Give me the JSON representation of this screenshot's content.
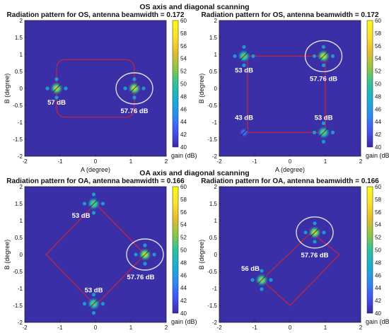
{
  "sections": {
    "top": "OS axis and diagonal scanning",
    "bottom": "OA axis and diagonal scanning"
  },
  "colors": {
    "background": "#3b2fa8",
    "box_line": "#e02424",
    "highlight_ring": "#dddddd",
    "colormap": [
      "#3e26a8",
      "#4354f5",
      "#2d8bf2",
      "#17b0d2",
      "#2dc29a",
      "#8ec742",
      "#e6bd2c",
      "#fbe32c",
      "#f9fb14"
    ]
  },
  "chart_data": [
    {
      "type": "heatmap",
      "title": "Radiation pattern for OS, antenna beamwidth = 0.172",
      "xlabel": "A (degree)",
      "ylabel": "B (degree)",
      "xlim": [
        -2,
        2
      ],
      "ylim": [
        -2,
        2
      ],
      "xticks": [
        "-2",
        "-1",
        "0",
        "1",
        "2"
      ],
      "yticks": [
        "2",
        "1.5",
        "1",
        "0.5",
        "0",
        "-0.5",
        "-1",
        "-1.5",
        "-2"
      ],
      "colorbar": {
        "label": "gain (dB)",
        "range": [
          40,
          60
        ],
        "ticks": [
          "60",
          "58",
          "56",
          "54",
          "52",
          "50",
          "48",
          "46",
          "44",
          "42",
          "40"
        ]
      },
      "scan_path": {
        "shape": "rounded-square",
        "x": [
          -1.1,
          1.1
        ],
        "y": [
          -0.85,
          0.85
        ]
      },
      "beams": [
        {
          "x": -1.1,
          "y": 0.0,
          "peak_db": 57,
          "label": "57 dB",
          "highlighted": false
        },
        {
          "x": 1.1,
          "y": 0.0,
          "peak_db": 57.76,
          "label": "57.76 dB",
          "highlighted": true
        }
      ]
    },
    {
      "type": "heatmap",
      "title": "Radiation pattern for OS, antenna beamwidth = 0.172",
      "xlabel": "A (degree)",
      "ylabel": "B (degree)",
      "xlim": [
        -2,
        2
      ],
      "ylim": [
        -2,
        2
      ],
      "xticks": [
        "-2",
        "-1",
        "0",
        "1",
        "2"
      ],
      "yticks": [
        "2",
        "1.5",
        "1",
        "0.5",
        "0",
        "-0.5",
        "-1",
        "-1.5",
        "-2"
      ],
      "colorbar": {
        "label": "gain (dB)",
        "range": [
          40,
          60
        ],
        "ticks": [
          "60",
          "58",
          "56",
          "54",
          "52",
          "50",
          "48",
          "46",
          "44",
          "42",
          "40"
        ]
      },
      "scan_path": {
        "shape": "square",
        "x": [
          -1.2,
          1.0
        ],
        "y": [
          -1.3,
          0.95
        ]
      },
      "beams": [
        {
          "x": -1.3,
          "y": 0.95,
          "peak_db": 53,
          "label": "53 dB",
          "highlighted": false
        },
        {
          "x": 0.95,
          "y": 0.95,
          "peak_db": 57.76,
          "label": "57.76 dB",
          "highlighted": true
        },
        {
          "x": -1.3,
          "y": -1.3,
          "peak_db": 43,
          "label": "43 dB",
          "highlighted": false
        },
        {
          "x": 0.95,
          "y": -1.3,
          "peak_db": 53,
          "label": "53 dB",
          "highlighted": false
        }
      ]
    },
    {
      "type": "heatmap",
      "title": "Radiation pattern for OA, antenna beamwidth = 0.166",
      "xlabel": "A (degree)",
      "ylabel": "B (degree)",
      "xlim": [
        -2,
        2
      ],
      "ylim": [
        -2,
        2
      ],
      "xticks": [
        "-2",
        "-1",
        "0",
        "1",
        "2"
      ],
      "yticks": [
        "2",
        "1.5",
        "1",
        "0.5",
        "0",
        "-0.5",
        "-1",
        "-1.5",
        "-2"
      ],
      "colorbar": {
        "label": "gain (dB)",
        "range": [
          40,
          60
        ],
        "ticks": [
          "60",
          "58",
          "56",
          "54",
          "52",
          "50",
          "48",
          "46",
          "44",
          "42",
          "40"
        ]
      },
      "scan_path": {
        "shape": "diamond",
        "points": [
          [
            0,
            1.5
          ],
          [
            1.4,
            0
          ],
          [
            0,
            -1.5
          ],
          [
            -1.4,
            0
          ]
        ]
      },
      "beams": [
        {
          "x": -0.05,
          "y": 1.5,
          "peak_db": 53,
          "label": "53 dB",
          "highlighted": false
        },
        {
          "x": 1.4,
          "y": 0.0,
          "peak_db": 57.76,
          "label": "57.76 dB",
          "highlighted": true
        },
        {
          "x": -0.05,
          "y": -1.45,
          "peak_db": 53,
          "label": "53 dB",
          "highlighted": false
        }
      ]
    },
    {
      "type": "heatmap",
      "title": "Radiation pattern for OA, antenna beamwidth = 0.166",
      "xlabel": "A (degree)",
      "ylabel": "B (degree)",
      "xlim": [
        -2,
        2
      ],
      "ylim": [
        -2,
        2
      ],
      "xticks": [
        "-2",
        "-1",
        "0",
        "1",
        "2"
      ],
      "yticks": [
        "2",
        "1.5",
        "1",
        "0.5",
        "0",
        "-0.5",
        "-1",
        "-1.5",
        "-2"
      ],
      "colorbar": {
        "label": "gain (dB)",
        "range": [
          40,
          60
        ],
        "ticks": [
          "60",
          "58",
          "56",
          "54",
          "52",
          "50",
          "48",
          "46",
          "44",
          "42",
          "40"
        ]
      },
      "scan_path": {
        "shape": "diamond",
        "points": [
          [
            0.6,
            0.65
          ],
          [
            1.4,
            0
          ],
          [
            0,
            -1.5
          ],
          [
            -0.8,
            -0.75
          ]
        ]
      },
      "beams": [
        {
          "x": 0.7,
          "y": 0.65,
          "peak_db": 57.76,
          "label": "57.76 dB",
          "highlighted": true
        },
        {
          "x": -0.8,
          "y": -0.75,
          "peak_db": 56,
          "label": "56 dB",
          "highlighted": false
        }
      ]
    }
  ]
}
